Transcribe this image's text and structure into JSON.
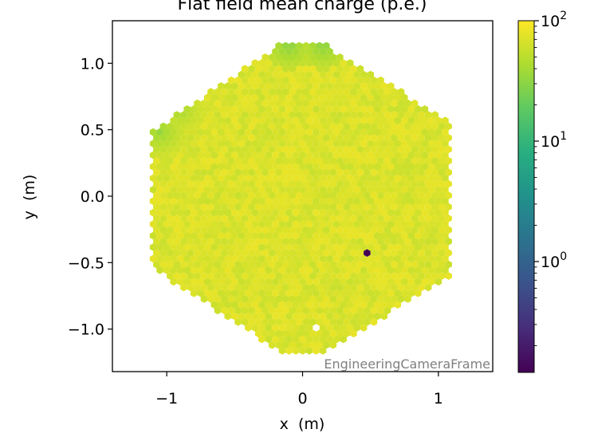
{
  "chart_data": {
    "type": "heatmap",
    "title": "Flat field mean charge (p.e.)",
    "xlabel": "x  (m)",
    "ylabel": "y  (m)",
    "xlim": [
      -1.4,
      1.4
    ],
    "ylim": [
      -1.32,
      1.32
    ],
    "x_ticks": [
      -1,
      0,
      1
    ],
    "y_ticks": [
      -1.0,
      -0.5,
      0.0,
      0.5,
      1.0
    ],
    "x_tick_labels": [
      "−1",
      "0",
      "1"
    ],
    "y_tick_labels": [
      "−1.0",
      "−0.5",
      "0.0",
      "0.5",
      "1.0"
    ],
    "frame_label": "EngineeringCameraFrame",
    "camera_shape": "hexagon of hexagonal pixels",
    "camera_outline": [
      [
        -0.12,
        1.17
      ],
      [
        0.12,
        1.17
      ],
      [
        1.1,
        0.55
      ],
      [
        1.1,
        -0.6
      ],
      [
        0.12,
        -1.2
      ],
      [
        -0.12,
        -1.2
      ],
      [
        -1.1,
        -0.55
      ],
      [
        -1.1,
        0.5
      ]
    ],
    "typical_pixel_value": 70,
    "special_pixels": [
      {
        "x": 0.47,
        "y": -0.45,
        "value": 0.12,
        "note": "dark pixel"
      },
      {
        "x": 0.12,
        "y": -1.0,
        "value": null,
        "note": "missing pixel"
      }
    ],
    "low_value_regions": [
      {
        "x": -0.1,
        "y": 1.13,
        "value": 30
      },
      {
        "x": 0.15,
        "y": 1.13,
        "value": 30
      },
      {
        "x": -1.05,
        "y": 0.48,
        "value": 35
      },
      {
        "x": -0.9,
        "y": 0.65,
        "value": 40
      }
    ],
    "colorbar": {
      "colormap": "viridis",
      "scale": "log",
      "vmin": 0.12,
      "vmax": 100,
      "tick_values": [
        1,
        10,
        100
      ],
      "tick_labels": [
        {
          "base": "10",
          "exp": "0"
        },
        {
          "base": "10",
          "exp": "1"
        },
        {
          "base": "10",
          "exp": "2"
        }
      ]
    }
  }
}
